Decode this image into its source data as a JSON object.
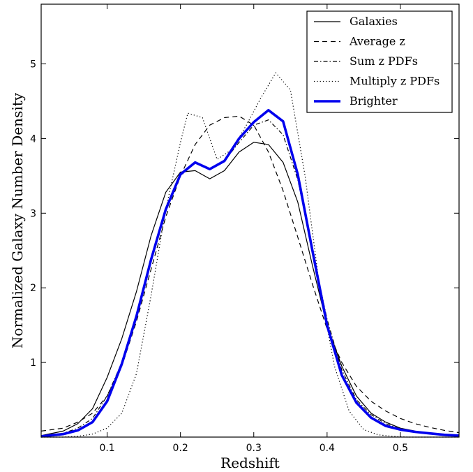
{
  "chart_data": {
    "type": "line",
    "title": "",
    "xlabel": "Redshift",
    "ylabel": "Normalized Galaxy Number Density",
    "xlim": [
      0.01,
      0.58
    ],
    "ylim": [
      0,
      5.8
    ],
    "xticks": [
      0.1,
      0.2,
      0.3,
      0.4,
      0.5
    ],
    "xtick_labels": [
      "0.1",
      "0.2",
      "0.3",
      "0.4",
      "0.5"
    ],
    "yticks": [
      1,
      2,
      3,
      4,
      5
    ],
    "ytick_labels": [
      "1",
      "2",
      "3",
      "4",
      "5"
    ],
    "grid": false,
    "legend_position": "top-right",
    "series": [
      {
        "name": "Galaxies",
        "style": "solid",
        "color": "#000000",
        "x": [
          0.01,
          0.04,
          0.06,
          0.08,
          0.1,
          0.12,
          0.14,
          0.16,
          0.18,
          0.2,
          0.22,
          0.24,
          0.26,
          0.28,
          0.3,
          0.32,
          0.34,
          0.36,
          0.38,
          0.4,
          0.42,
          0.44,
          0.46,
          0.48,
          0.5,
          0.52,
          0.54,
          0.56,
          0.58
        ],
        "y": [
          0.02,
          0.08,
          0.18,
          0.38,
          0.8,
          1.32,
          1.95,
          2.7,
          3.28,
          3.55,
          3.57,
          3.46,
          3.57,
          3.82,
          3.95,
          3.92,
          3.68,
          3.15,
          2.3,
          1.5,
          0.95,
          0.55,
          0.32,
          0.2,
          0.12,
          0.08,
          0.05,
          0.03,
          0.02
        ]
      },
      {
        "name": "Average z",
        "style": "dashed",
        "color": "#000000",
        "x": [
          0.01,
          0.04,
          0.06,
          0.08,
          0.1,
          0.12,
          0.14,
          0.16,
          0.18,
          0.2,
          0.22,
          0.24,
          0.26,
          0.28,
          0.3,
          0.32,
          0.34,
          0.36,
          0.38,
          0.4,
          0.42,
          0.44,
          0.46,
          0.48,
          0.5,
          0.52,
          0.54,
          0.56,
          0.58
        ],
        "y": [
          0.08,
          0.12,
          0.2,
          0.32,
          0.55,
          0.95,
          1.55,
          2.25,
          2.95,
          3.5,
          3.92,
          4.18,
          4.28,
          4.3,
          4.18,
          3.82,
          3.3,
          2.68,
          2.05,
          1.45,
          1.0,
          0.68,
          0.48,
          0.35,
          0.25,
          0.18,
          0.13,
          0.09,
          0.06
        ]
      },
      {
        "name": "Sum z PDFs",
        "style": "dashdot",
        "color": "#000000",
        "x": [
          0.01,
          0.04,
          0.06,
          0.08,
          0.1,
          0.12,
          0.14,
          0.16,
          0.18,
          0.2,
          0.22,
          0.24,
          0.26,
          0.28,
          0.3,
          0.32,
          0.34,
          0.36,
          0.38,
          0.4,
          0.42,
          0.44,
          0.46,
          0.48,
          0.5,
          0.52,
          0.54,
          0.56,
          0.58
        ],
        "y": [
          0.02,
          0.05,
          0.12,
          0.25,
          0.55,
          1.0,
          1.65,
          2.38,
          3.05,
          3.5,
          3.67,
          3.6,
          3.7,
          3.95,
          4.18,
          4.25,
          4.05,
          3.45,
          2.5,
          1.58,
          0.9,
          0.5,
          0.3,
          0.18,
          0.11,
          0.07,
          0.05,
          0.03,
          0.02
        ]
      },
      {
        "name": "Multiply z PDFs",
        "style": "dotted",
        "color": "#000000",
        "x": [
          0.01,
          0.04,
          0.06,
          0.08,
          0.1,
          0.12,
          0.14,
          0.16,
          0.18,
          0.2,
          0.21,
          0.23,
          0.25,
          0.27,
          0.29,
          0.31,
          0.33,
          0.35,
          0.37,
          0.39,
          0.41,
          0.43,
          0.45,
          0.47,
          0.49,
          0.51,
          0.53,
          0.58
        ],
        "y": [
          0.0,
          0.0,
          0.01,
          0.04,
          0.12,
          0.32,
          0.85,
          1.9,
          3.05,
          3.95,
          4.34,
          4.28,
          3.72,
          3.85,
          4.18,
          4.55,
          4.88,
          4.65,
          3.5,
          2.0,
          0.95,
          0.35,
          0.1,
          0.03,
          0.01,
          0.0,
          0.0,
          0.0
        ]
      },
      {
        "name": "Brighter",
        "style": "thick",
        "color": "#0000ee",
        "x": [
          0.01,
          0.04,
          0.06,
          0.08,
          0.1,
          0.12,
          0.14,
          0.16,
          0.18,
          0.2,
          0.22,
          0.24,
          0.26,
          0.28,
          0.3,
          0.32,
          0.34,
          0.36,
          0.38,
          0.4,
          0.42,
          0.44,
          0.46,
          0.48,
          0.5,
          0.52,
          0.54,
          0.56,
          0.58
        ],
        "y": [
          0.01,
          0.04,
          0.09,
          0.2,
          0.48,
          0.98,
          1.62,
          2.38,
          3.05,
          3.52,
          3.68,
          3.59,
          3.7,
          4.0,
          4.22,
          4.38,
          4.23,
          3.52,
          2.5,
          1.5,
          0.83,
          0.46,
          0.26,
          0.15,
          0.1,
          0.07,
          0.05,
          0.03,
          0.02
        ]
      }
    ]
  }
}
